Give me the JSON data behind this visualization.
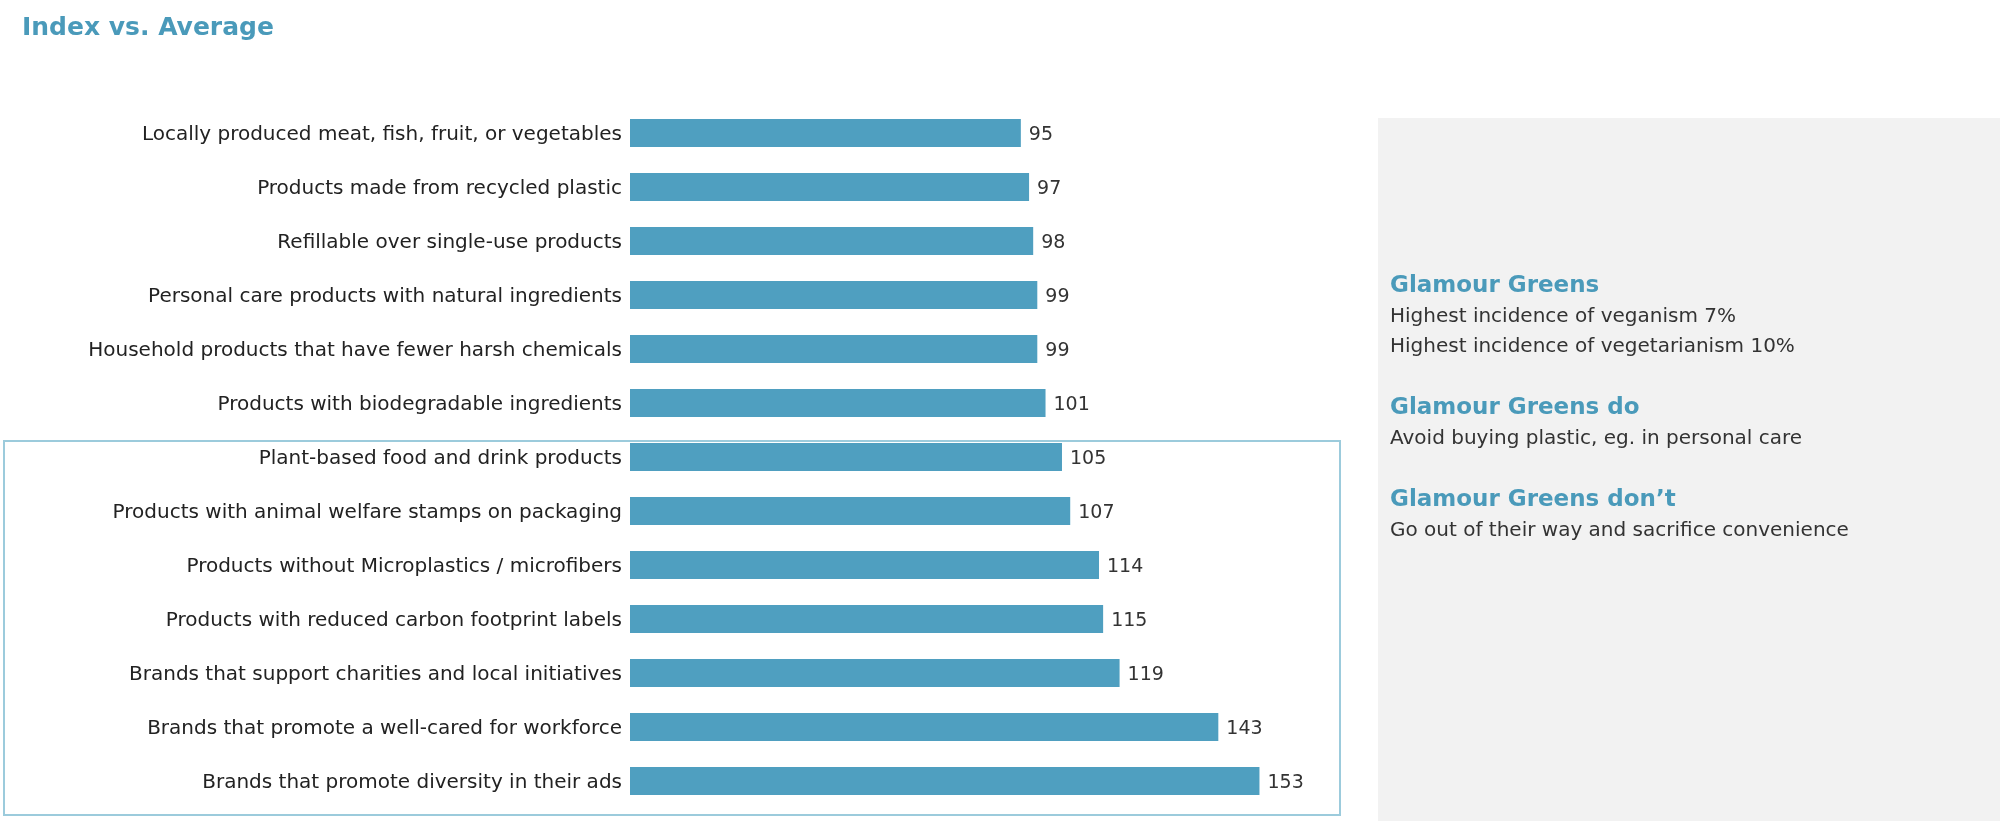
{
  "chart_data": [
    {
      "type": "bar",
      "orientation": "horizontal",
      "title": "Index vs. Average",
      "color": "#4f9fc0",
      "data_labels": true,
      "categories": [
        "Locally produced meat, fish, fruit, or vegetables",
        "Products made from recycled plastic ",
        "Refillable over single-use products",
        "Personal care products with natural ingredients",
        "Household products that have fewer harsh chemicals",
        "Products with biodegradable ingredients",
        "Plant-based food and drink products",
        "Products with animal welfare stamps on packaging",
        "Products without Microplastics / microfibers",
        "Products with reduced carbon footprint labels",
        "Brands that support charities and local initiatives",
        "Brands that promote a well-cared for workforce",
        "Brands that promote diversity in their ads"
      ],
      "values": [
        95,
        97,
        98,
        99,
        99,
        101,
        105,
        107,
        114,
        115,
        119,
        143,
        153
      ]
    },
    {
      "type": "other",
      "annotations": [
        "Glamour Greens",
        "Highest incidence of veganism 7%",
        "Highest incidence of vegetarianism 10%",
        "Glamour Greens do",
        "Avoid buying plastic, eg. in personal care",
        "Glamour Greens don’t",
        "Go out of their way and sacrifice convenience"
      ]
    }
  ]
}
